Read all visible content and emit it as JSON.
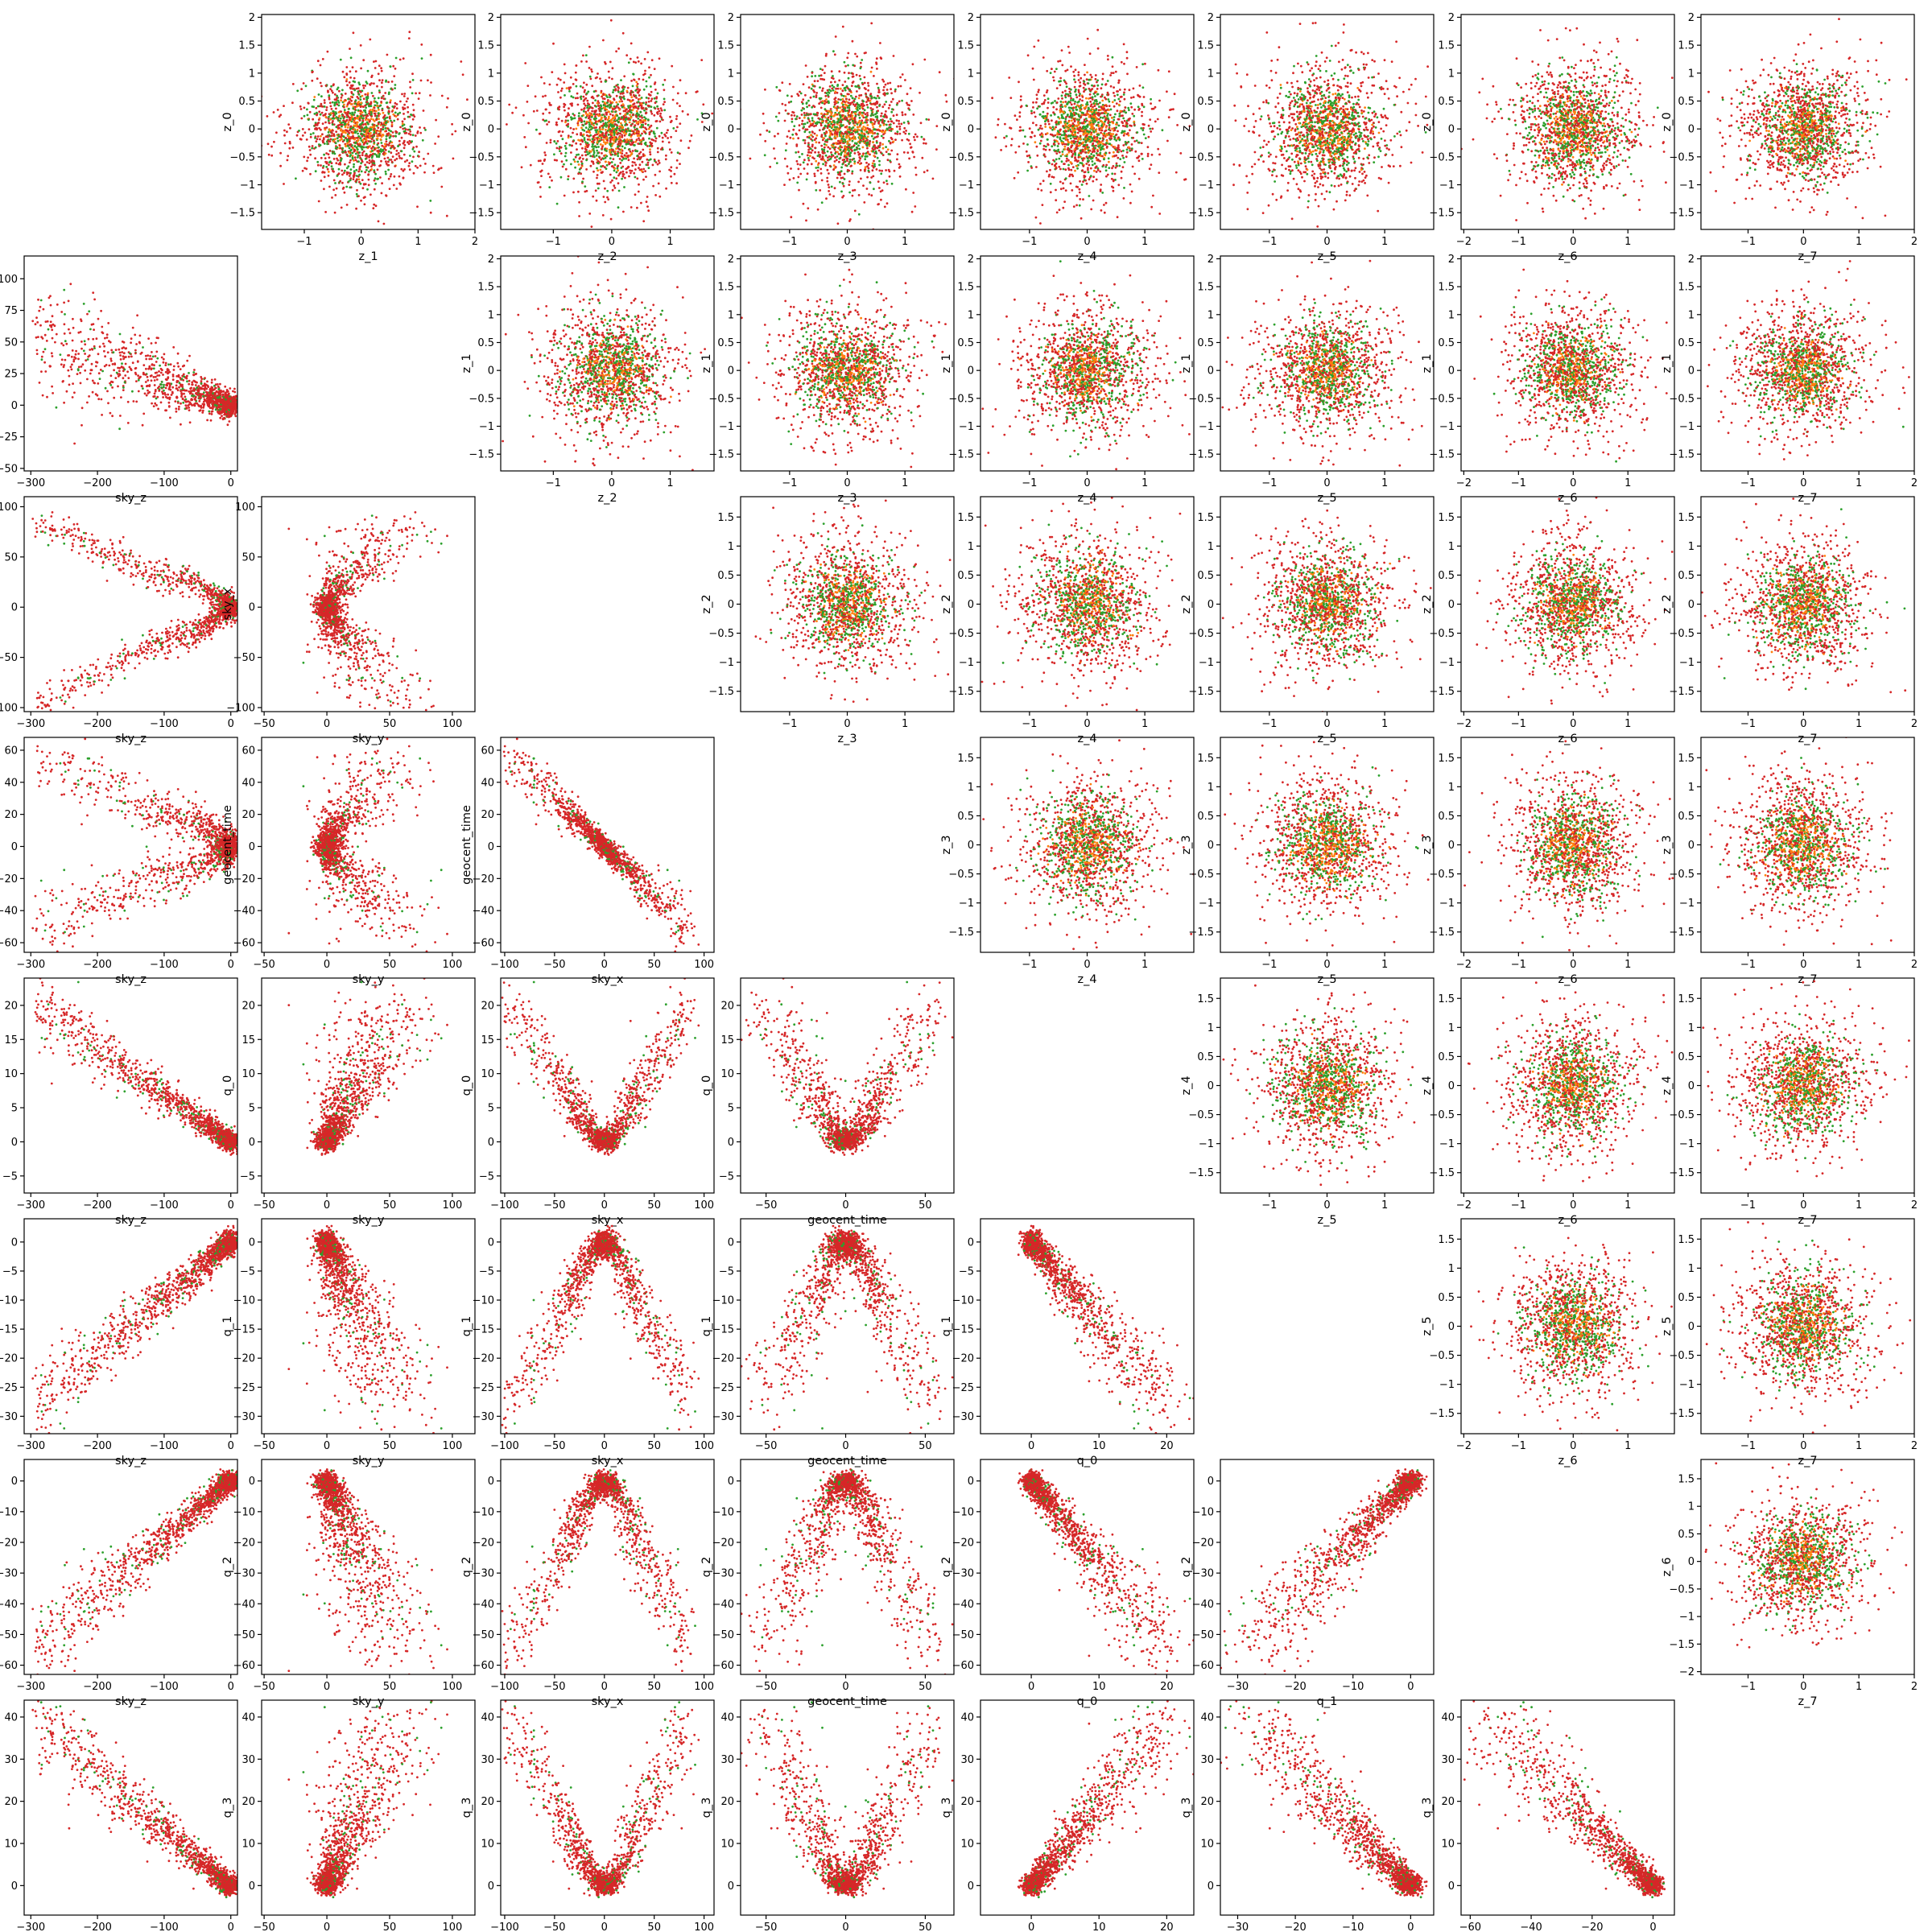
{
  "figure": {
    "type": "scatter-matrix",
    "colors": {
      "series_a": "#d62728",
      "series_b": "#2ca02c",
      "series_c": "#ff7f0e"
    }
  },
  "chart_data": {
    "type": "scatter",
    "lower_variables": [
      "sky_z",
      "sky_y",
      "sky_x",
      "geocent_time",
      "q_0",
      "q_1",
      "q_2",
      "q_3"
    ],
    "upper_variables": [
      "z_0",
      "z_1",
      "z_2",
      "z_3",
      "z_4",
      "z_5",
      "z_6",
      "z_7"
    ],
    "series": [
      {
        "color": "#d62728"
      },
      {
        "color": "#2ca02c"
      },
      {
        "color": "#ff7f0e"
      }
    ],
    "lower_ticks": {
      "sky_z": [
        -300,
        -200,
        -100,
        0
      ],
      "sky_y": [
        -50,
        -25,
        0,
        25,
        50,
        75,
        100
      ],
      "sky_y_x": [
        -50,
        0,
        50,
        100
      ],
      "sky_x": [
        -100,
        -50,
        0,
        50,
        100
      ],
      "geocent_time": [
        -60,
        -40,
        -20,
        0,
        20,
        40,
        60
      ],
      "geocent_time_x": [
        -50,
        0,
        50
      ],
      "q_0": [
        -5,
        0,
        5,
        10,
        15,
        20
      ],
      "q_0_x": [
        0,
        10,
        20
      ],
      "q_1": [
        -30,
        -25,
        -20,
        -15,
        -10,
        -5,
        0
      ],
      "q_1_x": [
        -30,
        -20,
        -10,
        0
      ],
      "q_2": [
        -60,
        -50,
        -40,
        -30,
        -20,
        -10,
        0
      ],
      "q_2_x": [
        -60,
        -40,
        -20,
        0
      ],
      "q_3": [
        0,
        10,
        20,
        30,
        40
      ]
    },
    "lower_ranges": {
      "sky_z": [
        -310,
        10
      ],
      "sky_y": [
        -52,
        118
      ],
      "sky_x": [
        -104,
        110
      ],
      "geocent_time": [
        -66,
        68
      ],
      "q_0": [
        -7.5,
        24
      ],
      "q_1": [
        -33,
        4
      ],
      "q_2": [
        -63,
        7
      ],
      "q_3": [
        -7,
        44
      ]
    },
    "upper_ticks_y": [
      -1.5,
      -1.0,
      -0.5,
      0.0,
      0.5,
      1.0,
      1.5,
      2.0
    ],
    "upper_ticks_x": [
      -1,
      0,
      1
    ],
    "upper_ticks_x_z1": [
      -1,
      0,
      1,
      2
    ],
    "upper_ticks_x_z6": [
      -2,
      -1,
      0,
      1
    ],
    "upper_ticks_x_z7": [
      -1,
      0,
      1,
      2
    ],
    "upper_ticks_y_z6": [
      -2.0,
      -1.5,
      -1.0,
      -0.5,
      0.0,
      0.5,
      1.0,
      1.5
    ],
    "upper_ranges": {
      "z_0": [
        -1.8,
        2.05
      ],
      "z_1": [
        -1.8,
        2.05
      ],
      "z_2": [
        -1.85,
        1.85
      ],
      "z_3": [
        -1.85,
        1.85
      ],
      "z_4": [
        -1.85,
        1.85
      ],
      "z_5": [
        -1.85,
        1.85
      ],
      "z_6": [
        -2.05,
        1.85
      ],
      "z_7": [
        -1.85,
        2.0
      ]
    },
    "upper_ranges_x": {
      "z_1": [
        -1.75,
        2.0
      ],
      "z_2": [
        -1.9,
        1.75
      ],
      "z_3": [
        -1.85,
        1.85
      ],
      "z_4": [
        -1.85,
        1.85
      ],
      "z_5": [
        -1.85,
        1.85
      ],
      "z_6": [
        -2.05,
        1.85
      ],
      "z_7": [
        -1.85,
        2.0
      ]
    }
  }
}
